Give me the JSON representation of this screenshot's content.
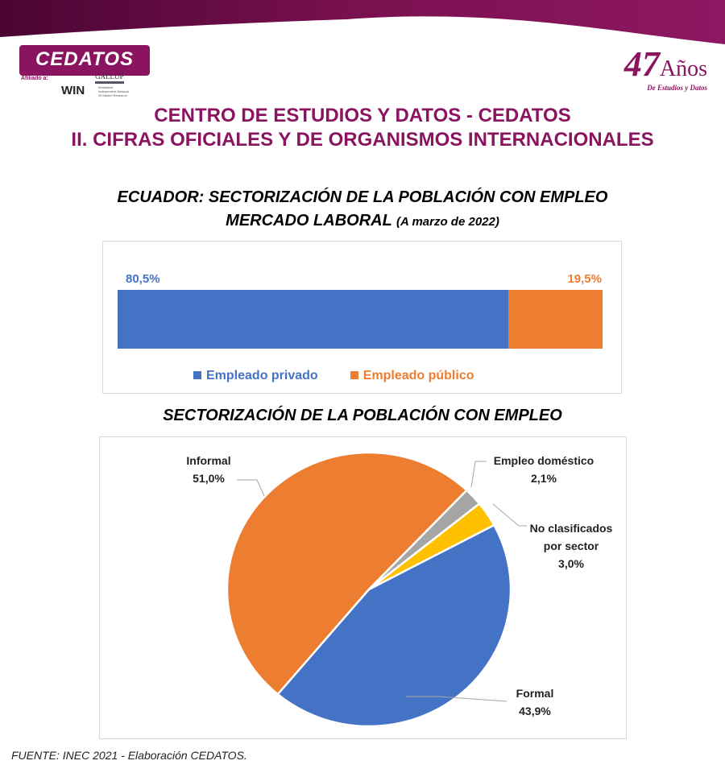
{
  "header": {
    "logo_text": "CEDATOS",
    "affiliation": "Afiliado a:",
    "win": "WIN",
    "win_sub": "Worldwide Independent Network Of Market Research",
    "gallup": "GALLUP",
    "years_number": "47",
    "years_word": "Años",
    "years_sub": "De Estudios y Datos",
    "title1": "CENTRO DE ESTUDIOS Y DATOS - CEDATOS",
    "title2": "II.  CIFRAS OFICIALES Y DE ORGANISMOS INTERNACIONALES"
  },
  "colors": {
    "brand": "#8a1460",
    "blue": "#4472c4",
    "orange": "#ed7d31",
    "gray": "#a5a5a5",
    "yellow": "#ffc000"
  },
  "chart_data": [
    {
      "type": "bar",
      "stacked": true,
      "orientation": "horizontal",
      "title": "ECUADOR: SECTORIZACIÓN DE LA POBLACIÓN CON EMPLEO",
      "subtitle": "MERCADO LABORAL",
      "subtitle_note": "(A marzo de 2022)",
      "series": [
        {
          "name": "Empleado privado",
          "value": 80.5,
          "label": "80,5%",
          "color": "#4472c4"
        },
        {
          "name": "Empleado público",
          "value": 19.5,
          "label": "19,5%",
          "color": "#ed7d31"
        }
      ],
      "legend": "bottom"
    },
    {
      "type": "pie",
      "title": "SECTORIZACIÓN DE LA POBLACIÓN CON EMPLEO",
      "slices": [
        {
          "name": "Empleo doméstico",
          "value": 2.1,
          "label": "2,1%",
          "color": "#a5a5a5"
        },
        {
          "name": "No clasificados por sector",
          "name_lines": [
            "No clasificados",
            "por sector"
          ],
          "value": 3.0,
          "label": "3,0%",
          "color": "#ffc000"
        },
        {
          "name": "Formal",
          "value": 43.9,
          "label": "43,9%",
          "color": "#4472c4"
        },
        {
          "name": "Informal",
          "value": 51.0,
          "label": "51,0%",
          "color": "#ed7d31"
        }
      ]
    }
  ],
  "footer": {
    "source": "FUENTE: INEC 2021 -  Elaboración CEDATOS."
  }
}
